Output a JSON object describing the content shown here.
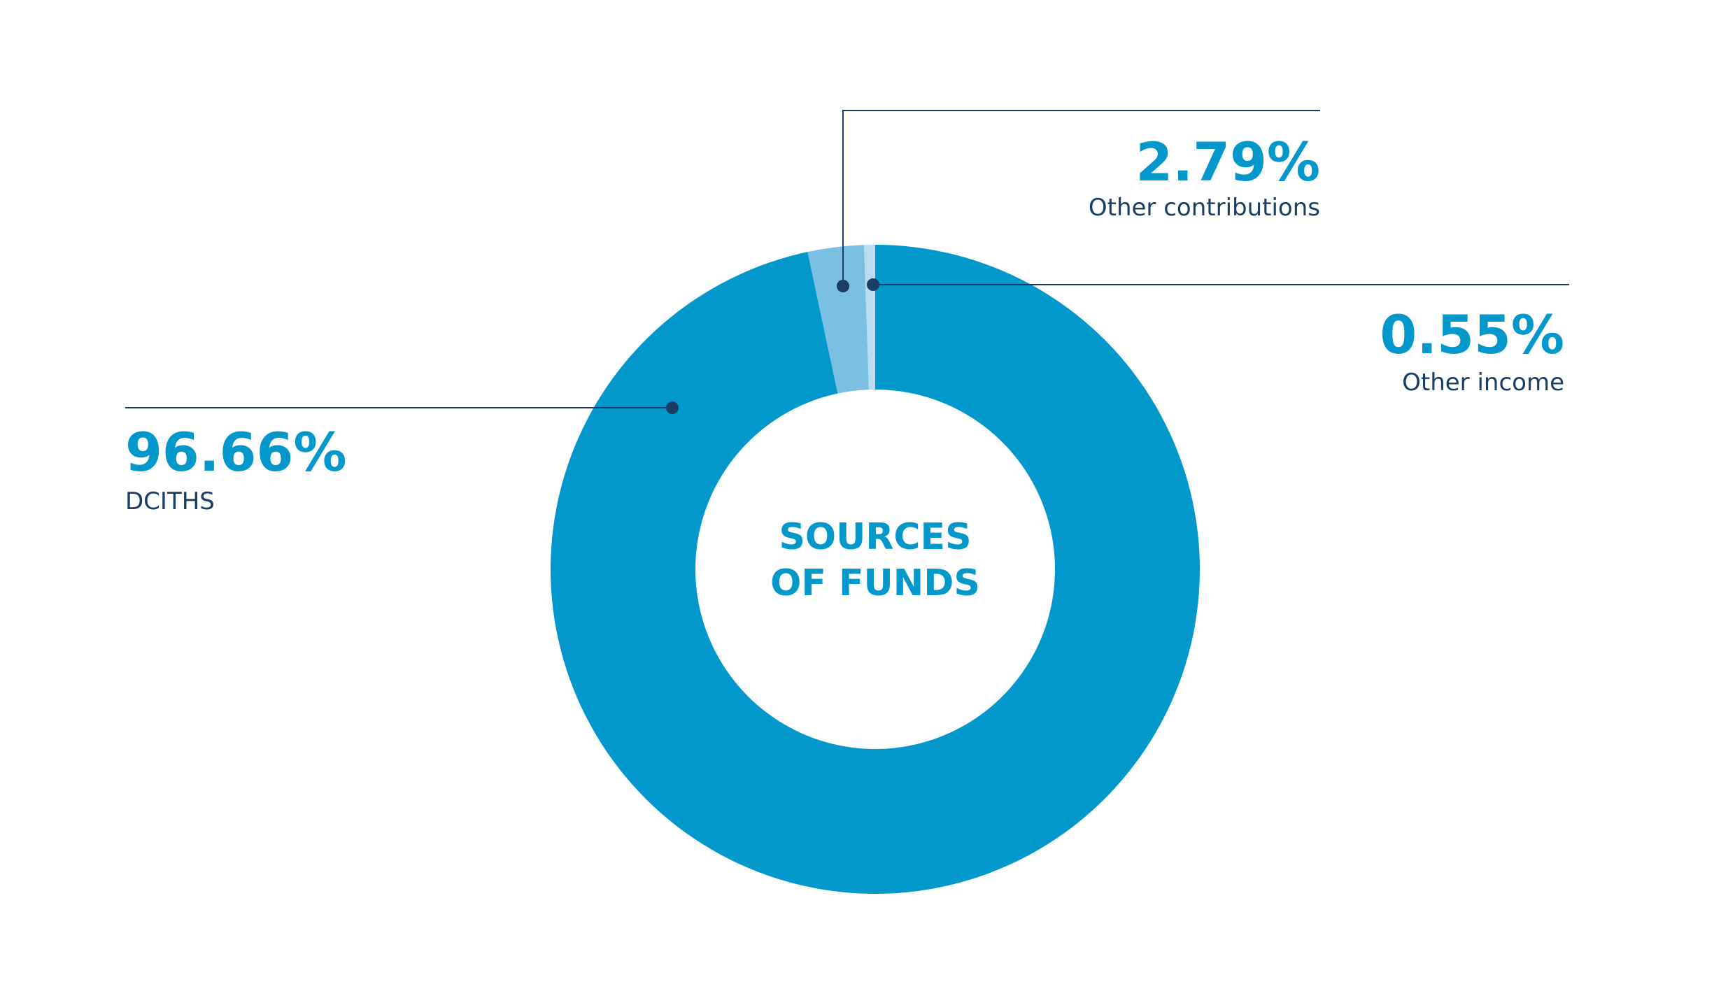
{
  "chart_data": {
    "type": "donut",
    "title": "SOURCES OF FUNDS",
    "categories": [
      "DCITHS",
      "Other contributions",
      "Other income"
    ],
    "values": [
      96.66,
      2.79,
      0.55
    ],
    "value_labels": [
      "96.66%",
      "2.79%",
      "0.55%"
    ],
    "colors": [
      "#0398cc",
      "#7bbfe3",
      "#b9dcf0"
    ]
  }
}
